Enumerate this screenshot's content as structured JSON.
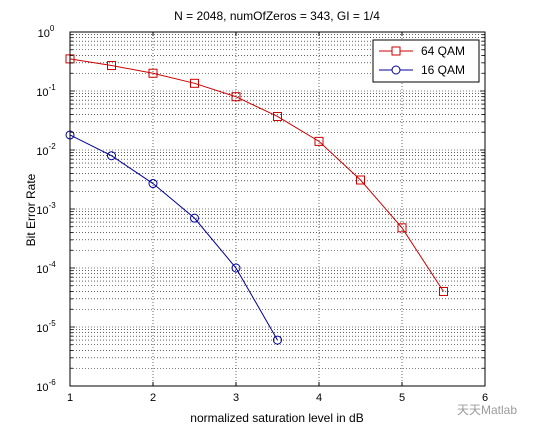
{
  "chart_data": {
    "type": "line",
    "title": "N = 2048, numOfZeros = 343, GI = 1/4",
    "xlabel": "normalized saturation level in dB",
    "ylabel": "Bit Error Rate",
    "xlim": [
      1,
      6
    ],
    "ylim": [
      1e-06,
      1
    ],
    "y_scale": "log",
    "x_ticks": [
      "1",
      "2",
      "3",
      "4",
      "5",
      "6"
    ],
    "y_ticks": [
      {
        "base": "10",
        "exp": "0"
      },
      {
        "base": "10",
        "exp": "-1"
      },
      {
        "base": "10",
        "exp": "-2"
      },
      {
        "base": "10",
        "exp": "-3"
      },
      {
        "base": "10",
        "exp": "-4"
      },
      {
        "base": "10",
        "exp": "-5"
      },
      {
        "base": "10",
        "exp": "-6"
      }
    ],
    "grid": true,
    "legend_position": "top-right",
    "series": [
      {
        "name": "64 QAM",
        "color": "#cc0000",
        "marker": "square",
        "x": [
          1,
          1.5,
          2,
          2.5,
          3,
          3.5,
          4,
          4.5,
          5,
          5.5
        ],
        "y": [
          0.35,
          0.27,
          0.2,
          0.135,
          0.08,
          0.037,
          0.014,
          0.0031,
          0.00048,
          4e-05
        ]
      },
      {
        "name": "16 QAM",
        "color": "#000099",
        "marker": "circle",
        "x": [
          1,
          1.5,
          2,
          2.5,
          3,
          3.5
        ],
        "y": [
          0.018,
          0.008,
          0.0027,
          0.0007,
          0.0001,
          6e-06
        ]
      }
    ]
  },
  "watermark": "天天Matlab"
}
